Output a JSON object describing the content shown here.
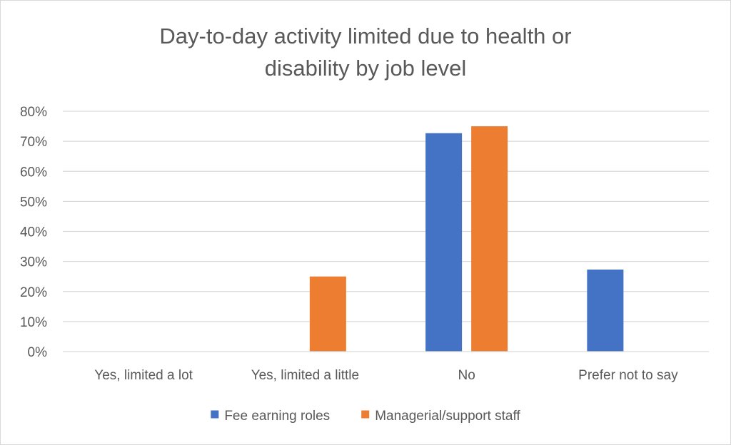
{
  "chart_data": {
    "type": "bar",
    "title_lines": [
      "Day-to-day activity limited due to health or",
      "disability by job level"
    ],
    "categories": [
      "Yes, limited a lot",
      "Yes, limited a little",
      "No",
      "Prefer not to say"
    ],
    "series": [
      {
        "name": "Fee earning roles",
        "color": "#4472c4",
        "values": [
          0,
          0,
          72.7,
          27.3
        ]
      },
      {
        "name": "Managerial/support staff",
        "color": "#ed7d31",
        "values": [
          0,
          25,
          75,
          0
        ]
      }
    ],
    "ylim": [
      0,
      80
    ],
    "ytick_step": 10,
    "ytick_labels": [
      "0%",
      "10%",
      "20%",
      "30%",
      "40%",
      "50%",
      "60%",
      "70%",
      "80%"
    ],
    "grid": true,
    "legend_position": "bottom"
  }
}
